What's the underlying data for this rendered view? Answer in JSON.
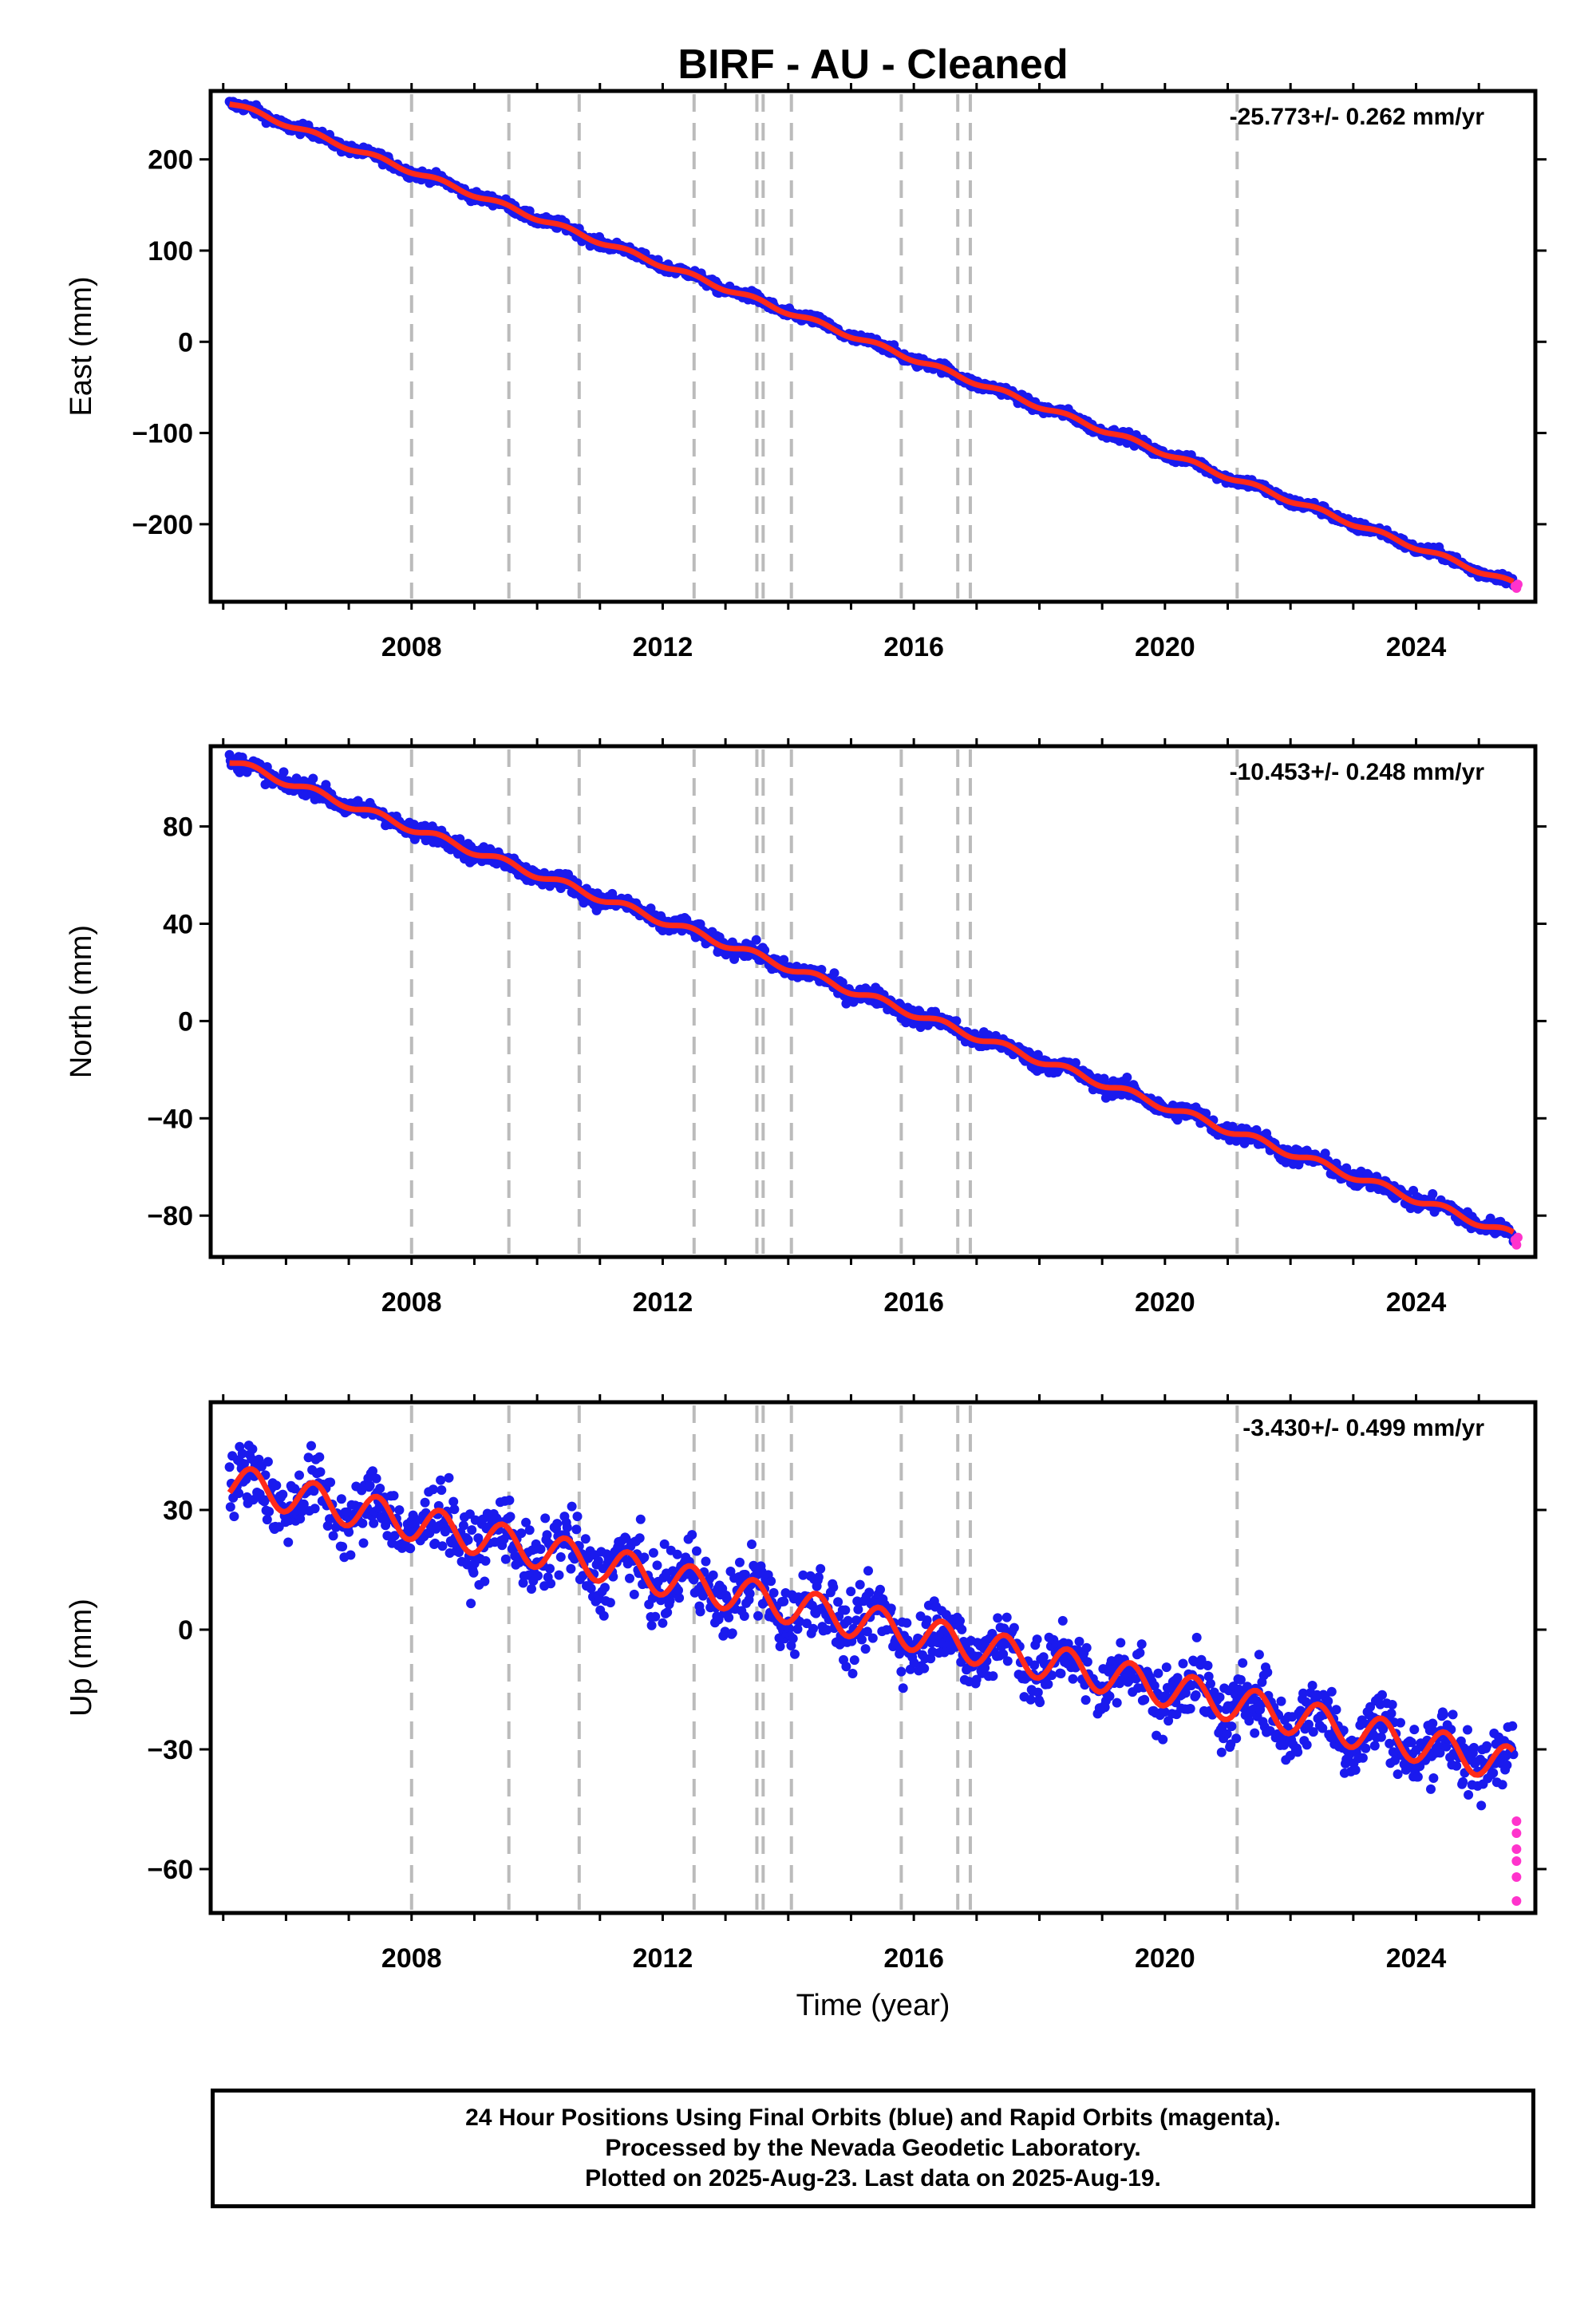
{
  "title": "BIRF  - AU - Cleaned",
  "footer": {
    "lines": [
      "24 Hour Positions Using Final Orbits (blue) and Rapid Orbits (magenta).",
      "Processed by the Nevada Geodetic Laboratory.",
      "Plotted on 2025-Aug-23. Last data on 2025-Aug-19."
    ]
  },
  "colors": {
    "final_orbits": "#1a1aee",
    "rapid_orbits": "#ff33cc",
    "model_fit": "#ff2a1a",
    "event_lines": "#bbbbbb"
  },
  "chart_data": [
    {
      "type": "scatter",
      "component": "east",
      "ylabel": "East (mm)",
      "xlabel": "",
      "rate_text": "-25.773+/- 0.262 mm/yr",
      "rate": -25.773,
      "xlim": [
        2004.8,
        2025.9
      ],
      "ylim": [
        -285,
        275
      ],
      "yticks": [
        -200,
        -100,
        0,
        100,
        200
      ],
      "yticklabels": [
        "−200",
        "−100",
        "0",
        "100",
        "200"
      ],
      "xticks": [
        2008,
        2012,
        2016,
        2020,
        2024
      ],
      "xticklabels": [
        "2008",
        "2012",
        "2016",
        "2020",
        "2024"
      ],
      "event_lines": [
        2008.0,
        2009.55,
        2010.67,
        2012.5,
        2013.5,
        2013.6,
        2014.05,
        2015.8,
        2016.7,
        2016.9,
        2021.15
      ],
      "series": [
        {
          "role": "final",
          "x_start": 2005.1,
          "x_end": 2025.55,
          "y_start": 262,
          "y_end": -265,
          "scatter_mm": 4
        },
        {
          "role": "rapid",
          "x": [
            2025.58,
            2025.6,
            2025.62
          ],
          "y": [
            -268,
            -270,
            -266
          ]
        },
        {
          "role": "model",
          "amplitude_mm": 2.5
        }
      ],
      "grid": false
    },
    {
      "type": "scatter",
      "component": "north",
      "ylabel": "North (mm)",
      "xlabel": "",
      "rate_text": "-10.453+/- 0.248 mm/yr",
      "rate": -10.453,
      "xlim": [
        2004.8,
        2025.9
      ],
      "ylim": [
        -97,
        113
      ],
      "yticks": [
        -80,
        -40,
        0,
        40,
        80
      ],
      "yticklabels": [
        "−80",
        "−40",
        "0",
        "40",
        "80"
      ],
      "xticks": [
        2008,
        2012,
        2016,
        2020,
        2024
      ],
      "xticklabels": [
        "2008",
        "2012",
        "2016",
        "2020",
        "2024"
      ],
      "event_lines": [
        2008.0,
        2009.55,
        2010.67,
        2012.5,
        2013.5,
        2013.6,
        2014.05,
        2015.8,
        2016.7,
        2016.9,
        2021.15
      ],
      "series": [
        {
          "role": "final",
          "x_start": 2005.1,
          "x_end": 2025.55,
          "y_start": 107,
          "y_end": -88,
          "scatter_mm": 2.5
        },
        {
          "role": "rapid",
          "x": [
            2025.58,
            2025.6,
            2025.62
          ],
          "y": [
            -90,
            -92,
            -89
          ]
        },
        {
          "role": "model",
          "amplitude_mm": 1.5
        }
      ],
      "grid": false
    },
    {
      "type": "scatter",
      "component": "up",
      "ylabel": "Up (mm)",
      "xlabel": "Time (year)",
      "rate_text": "-3.430+/- 0.499 mm/yr",
      "rate": -3.43,
      "xlim": [
        2004.8,
        2025.9
      ],
      "ylim": [
        -71,
        57
      ],
      "yticks": [
        -60,
        -30,
        0,
        30
      ],
      "yticklabels": [
        "−60",
        "−30",
        "0",
        "30"
      ],
      "xticks": [
        2008,
        2012,
        2016,
        2020,
        2024
      ],
      "xticklabels": [
        "2008",
        "2012",
        "2016",
        "2020",
        "2024"
      ],
      "event_lines": [
        2008.0,
        2009.55,
        2010.67,
        2012.5,
        2013.5,
        2013.6,
        2014.05,
        2015.8,
        2016.7,
        2016.9,
        2021.15
      ],
      "series": [
        {
          "role": "final",
          "x_start": 2005.1,
          "x_end": 2025.55,
          "y_start": 37,
          "y_end": -34,
          "scatter_mm": 6
        },
        {
          "role": "rapid",
          "x": [
            2025.6,
            2025.6,
            2025.6,
            2025.6,
            2025.6,
            2025.6
          ],
          "y": [
            -48,
            -51,
            -55,
            -58,
            -62,
            -68
          ]
        },
        {
          "role": "model",
          "amplitude_mm": 4.5
        }
      ],
      "grid": false
    }
  ]
}
